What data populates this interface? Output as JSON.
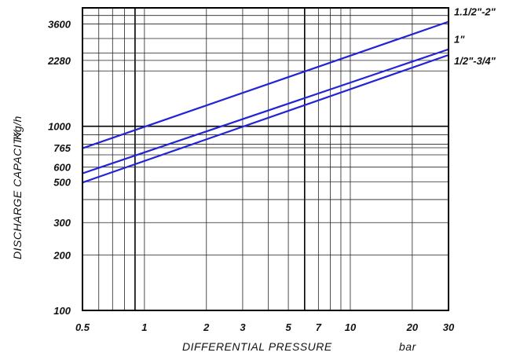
{
  "chart_data": {
    "type": "line",
    "title": "",
    "xlabel": "DIFFERENTIAL PRESSURE",
    "xunit": "bar",
    "ylabel": "DISCHARGE CAPACITY",
    "yunit": "Kg/h",
    "xscale": "log",
    "yscale": "log",
    "xlim": [
      0.5,
      30
    ],
    "ylim": [
      100,
      4400
    ],
    "x_ticks": [
      0.5,
      1,
      2,
      3,
      5,
      7,
      10,
      20,
      30
    ],
    "x_tick_labels": [
      "0.5",
      "1",
      "2",
      "3",
      "5",
      "7",
      "10",
      "20",
      "30"
    ],
    "y_ticks": [
      100,
      200,
      300,
      500,
      600,
      765,
      1000,
      2280,
      3600
    ],
    "y_tick_labels": [
      "100",
      "200",
      "300",
      "500",
      "600",
      "765",
      "1000",
      "2280",
      "3600"
    ],
    "x_grid_lines": [
      0.5,
      0.6,
      0.7,
      0.8,
      0.9,
      1,
      2,
      3,
      4,
      5,
      6,
      7,
      8,
      9,
      10,
      20,
      30
    ],
    "x_major_lines": [
      0.9,
      6
    ],
    "y_grid_lines": [
      100,
      200,
      300,
      400,
      500,
      600,
      700,
      765,
      800,
      900,
      1000,
      2000,
      2280,
      2500,
      3000,
      3600,
      4000
    ],
    "y_major_lines": [
      100,
      1000
    ],
    "grid": true,
    "series_color": "#2323d8",
    "series": [
      {
        "name": "1.1/2\"-2\"",
        "x": [
          0.5,
          30
        ],
        "y": [
          760,
          3700
        ]
      },
      {
        "name": "1\"",
        "x": [
          0.5,
          30
        ],
        "y": [
          555,
          2620
        ]
      },
      {
        "name": "1/2\"-3/4\"",
        "x": [
          0.5,
          30
        ],
        "y": [
          495,
          2440
        ]
      }
    ]
  }
}
